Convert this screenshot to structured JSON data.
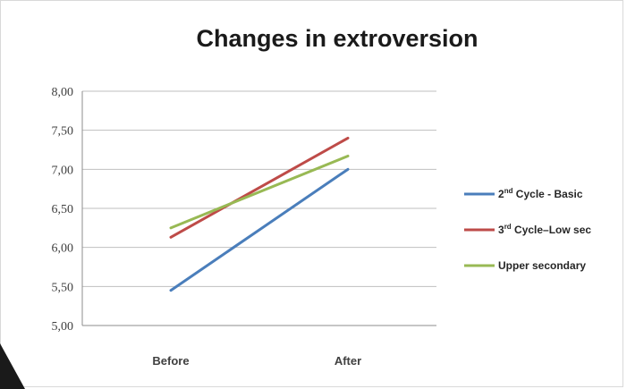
{
  "chart_data": {
    "type": "line",
    "title": "Changes in extroversion",
    "xlabel": "",
    "ylabel": "",
    "categories": [
      "Before",
      "After"
    ],
    "ylim": [
      5.0,
      8.0
    ],
    "yticks": [
      5.0,
      5.5,
      6.0,
      6.5,
      7.0,
      7.5,
      8.0
    ],
    "ytick_labels": [
      "5,00",
      "5,50",
      "6,00",
      "6,50",
      "7,00",
      "7,50",
      "8,00"
    ],
    "grid": true,
    "legend_position": "right",
    "series": [
      {
        "name": "2nd Cycle - Basic",
        "legend_main": "2",
        "legend_sup": "nd",
        "legend_rest": " Cycle - Basic",
        "values": [
          5.45,
          7.0
        ],
        "color": "#4a7ebb"
      },
      {
        "name": "3rd Cycle–Low sec",
        "legend_main": "3",
        "legend_sup": "rd",
        "legend_rest": " Cycle–Low sec",
        "values": [
          6.13,
          7.4
        ],
        "color": "#be4b48"
      },
      {
        "name": "Upper secondary",
        "legend_main": "Upper secondary",
        "legend_sup": "",
        "legend_rest": "",
        "values": [
          6.25,
          7.17
        ],
        "color": "#98b954"
      }
    ]
  }
}
